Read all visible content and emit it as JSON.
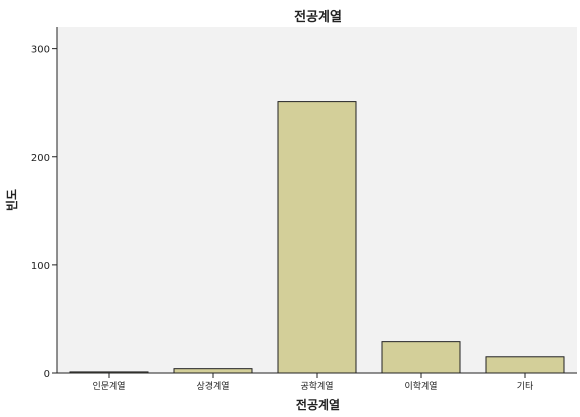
{
  "chart_data": {
    "type": "bar",
    "title": "전공계열",
    "xlabel": "전공계열",
    "ylabel": "빈도",
    "categories": [
      "인문계열",
      "상경계열",
      "공학계열",
      "이학계열",
      "기타"
    ],
    "values": [
      1,
      4,
      251,
      29,
      15
    ],
    "ylim": [
      0,
      320
    ],
    "yticks": [
      0,
      100,
      200,
      300
    ],
    "grid": false,
    "bar_color": "#d3cf99",
    "bar_edge_color": "#222222",
    "plot_background": "#f2f2f2"
  }
}
